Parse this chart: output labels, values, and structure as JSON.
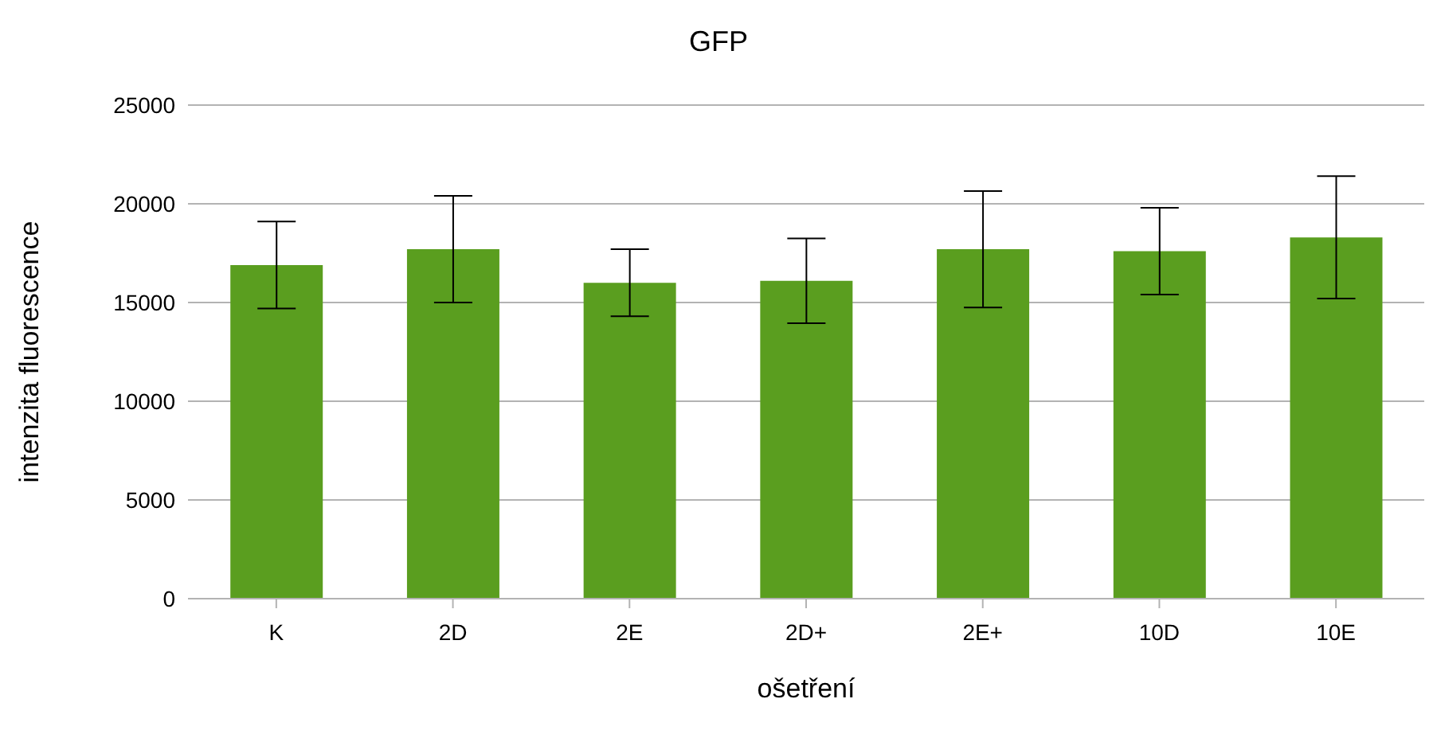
{
  "chart_data": {
    "type": "bar",
    "title": "GFP",
    "xlabel": "ošetření",
    "ylabel": "intenzita fluorescence",
    "categories": [
      "K",
      "2D",
      "2E",
      "2D+",
      "2E+",
      "10D",
      "10E"
    ],
    "values": [
      16900,
      17700,
      16000,
      16100,
      17700,
      17600,
      18300
    ],
    "errors": [
      2200,
      2700,
      1700,
      2150,
      2950,
      2200,
      3100
    ],
    "color": "#5a9e1f",
    "ylim": [
      0,
      25000
    ],
    "yticks": [
      0,
      5000,
      10000,
      15000,
      20000,
      25000
    ],
    "grid": "y",
    "legend": false
  }
}
